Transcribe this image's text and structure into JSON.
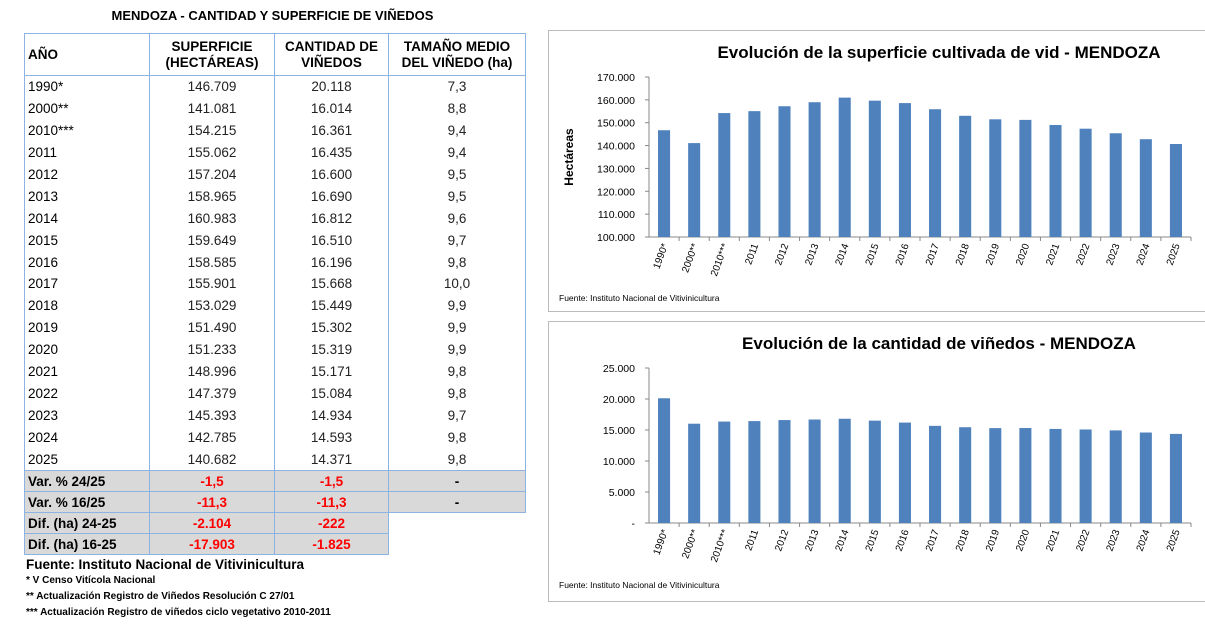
{
  "table": {
    "title": "MENDOZA - CANTIDAD Y SUPERFICIE DE VIÑEDOS",
    "headers": [
      "AÑO",
      "SUPERFICIE (HECTÁREAS)",
      "CANTIDAD DE VIÑEDOS",
      "TAMAÑO MEDIO DEL VIÑEDO (ha)"
    ],
    "rows": [
      [
        "1990*",
        "146.709",
        "20.118",
        "7,3"
      ],
      [
        "2000**",
        "141.081",
        "16.014",
        "8,8"
      ],
      [
        "2010***",
        "154.215",
        "16.361",
        "9,4"
      ],
      [
        "2011",
        "155.062",
        "16.435",
        "9,4"
      ],
      [
        "2012",
        "157.204",
        "16.600",
        "9,5"
      ],
      [
        "2013",
        "158.965",
        "16.690",
        "9,5"
      ],
      [
        "2014",
        "160.983",
        "16.812",
        "9,6"
      ],
      [
        "2015",
        "159.649",
        "16.510",
        "9,7"
      ],
      [
        "2016",
        "158.585",
        "16.196",
        "9,8"
      ],
      [
        "2017",
        "155.901",
        "15.668",
        "10,0"
      ],
      [
        "2018",
        "153.029",
        "15.449",
        "9,9"
      ],
      [
        "2019",
        "151.490",
        "15.302",
        "9,9"
      ],
      [
        "2020",
        "151.233",
        "15.319",
        "9,9"
      ],
      [
        "2021",
        "148.996",
        "15.171",
        "9,8"
      ],
      [
        "2022",
        "147.379",
        "15.084",
        "9,8"
      ],
      [
        "2023",
        "145.393",
        "14.934",
        "9,7"
      ],
      [
        "2024",
        "142.785",
        "14.593",
        "9,8"
      ],
      [
        "2025",
        "140.682",
        "14.371",
        "9,8"
      ]
    ],
    "summary": [
      [
        "Var. % 24/25",
        "-1,5",
        "-1,5",
        "-"
      ],
      [
        "Var. % 16/25",
        "-11,3",
        "-11,3",
        "-"
      ],
      [
        "Dif. (ha) 24-25",
        "-2.104",
        "-222"
      ],
      [
        "Dif. (ha) 16-25",
        "-17.903",
        "-1.825"
      ]
    ],
    "source": "Fuente: Instituto Nacional de Vitivinicultura",
    "notes": [
      "*  V Censo Vitícola Nacional",
      "**  Actualización Registro de Viñedos Resolución C 27/01",
      "***  Actualización Registro de viñedos ciclo vegetativo 2010-2011"
    ]
  },
  "colors": {
    "bar": "#4f81bd",
    "negative": "#ff0000"
  },
  "chart_data": [
    {
      "type": "bar",
      "title": "Evolución de la superficie cultivada de vid - MENDOZA",
      "ylabel": "Hectáreas",
      "xlabel": "",
      "ylim": [
        100000,
        170000
      ],
      "yticks": [
        "100.000",
        "110.000",
        "120.000",
        "130.000",
        "140.000",
        "150.000",
        "160.000",
        "170.000"
      ],
      "categories": [
        "1990*",
        "2000**",
        "2010***",
        "2011",
        "2012",
        "2013",
        "2014",
        "2015",
        "2016",
        "2017",
        "2018",
        "2019",
        "2020",
        "2021",
        "2022",
        "2023",
        "2024",
        "2025"
      ],
      "values": [
        146709,
        141081,
        154215,
        155062,
        157204,
        158965,
        160983,
        159649,
        158585,
        155901,
        153029,
        151490,
        151233,
        148996,
        147379,
        145393,
        142785,
        140682
      ],
      "source": "Fuente: Instituto Nacional de Vitivinicultura",
      "grid": false
    },
    {
      "type": "bar",
      "title": "Evolución de la cantidad de viñedos - MENDOZA",
      "ylabel": "",
      "xlabel": "",
      "ylim": [
        0,
        25000
      ],
      "yticks": [
        "-",
        "5.000",
        "10.000",
        "15.000",
        "20.000",
        "25.000"
      ],
      "categories": [
        "1990*",
        "2000**",
        "2010***",
        "2011",
        "2012",
        "2013",
        "2014",
        "2015",
        "2016",
        "2017",
        "2018",
        "2019",
        "2020",
        "2021",
        "2022",
        "2023",
        "2024",
        "2025"
      ],
      "values": [
        20118,
        16014,
        16361,
        16435,
        16600,
        16690,
        16812,
        16510,
        16196,
        15668,
        15449,
        15302,
        15319,
        15171,
        15084,
        14934,
        14593,
        14371
      ],
      "source": "Fuente: Instituto Nacional de Vitivinicultura",
      "grid": false
    }
  ]
}
